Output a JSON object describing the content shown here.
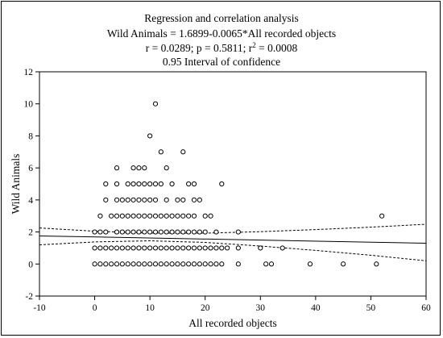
{
  "chart_data": {
    "type": "scatter",
    "title_lines": [
      "Regression and correlation analysis",
      "Wild Animals = 1.6899-0.0065*All recorded objects",
      "r = 0.0289; p = 0.5811; r2 = 0.0008",
      "0.95 Interval of confidence"
    ],
    "stats": {
      "r": "0.0289",
      "p": "0.5811",
      "r2": "0.0008"
    },
    "xlabel": "All recorded objects",
    "ylabel": "Wild Animals",
    "xlim": [
      -10,
      60
    ],
    "ylim": [
      -2,
      12
    ],
    "xticks": [
      -10,
      0,
      10,
      20,
      30,
      40,
      50,
      60
    ],
    "yticks": [
      -2,
      0,
      2,
      4,
      6,
      8,
      10,
      12
    ],
    "grid": false,
    "regression": {
      "intercept": 1.6899,
      "slope": -0.0065
    },
    "confidence_band": {
      "level": 0.95,
      "upper": [
        [
          -10,
          2.25
        ],
        [
          0,
          2.05
        ],
        [
          10,
          1.93
        ],
        [
          20,
          1.93
        ],
        [
          30,
          2.02
        ],
        [
          40,
          2.15
        ],
        [
          50,
          2.3
        ],
        [
          60,
          2.48
        ]
      ],
      "lower": [
        [
          -10,
          1.2
        ],
        [
          0,
          1.38
        ],
        [
          10,
          1.45
        ],
        [
          20,
          1.35
        ],
        [
          30,
          1.12
        ],
        [
          40,
          0.85
        ],
        [
          50,
          0.55
        ],
        [
          60,
          0.2
        ]
      ]
    },
    "points": [
      [
        0,
        0
      ],
      [
        1,
        0
      ],
      [
        2,
        0
      ],
      [
        3,
        0
      ],
      [
        4,
        0
      ],
      [
        5,
        0
      ],
      [
        6,
        0
      ],
      [
        7,
        0
      ],
      [
        8,
        0
      ],
      [
        9,
        0
      ],
      [
        10,
        0
      ],
      [
        11,
        0
      ],
      [
        12,
        0
      ],
      [
        13,
        0
      ],
      [
        14,
        0
      ],
      [
        15,
        0
      ],
      [
        16,
        0
      ],
      [
        17,
        0
      ],
      [
        18,
        0
      ],
      [
        19,
        0
      ],
      [
        20,
        0
      ],
      [
        21,
        0
      ],
      [
        22,
        0
      ],
      [
        23,
        0
      ],
      [
        26,
        0
      ],
      [
        31,
        0
      ],
      [
        32,
        0
      ],
      [
        39,
        0
      ],
      [
        45,
        0
      ],
      [
        51,
        0
      ],
      [
        0,
        1
      ],
      [
        1,
        1
      ],
      [
        2,
        1
      ],
      [
        3,
        1
      ],
      [
        4,
        1
      ],
      [
        5,
        1
      ],
      [
        6,
        1
      ],
      [
        7,
        1
      ],
      [
        8,
        1
      ],
      [
        9,
        1
      ],
      [
        10,
        1
      ],
      [
        11,
        1
      ],
      [
        12,
        1
      ],
      [
        13,
        1
      ],
      [
        14,
        1
      ],
      [
        15,
        1
      ],
      [
        16,
        1
      ],
      [
        17,
        1
      ],
      [
        18,
        1
      ],
      [
        19,
        1
      ],
      [
        20,
        1
      ],
      [
        21,
        1
      ],
      [
        22,
        1
      ],
      [
        23,
        1
      ],
      [
        24,
        1
      ],
      [
        26,
        1
      ],
      [
        30,
        1
      ],
      [
        34,
        1
      ],
      [
        0,
        2
      ],
      [
        1,
        2
      ],
      [
        2,
        2
      ],
      [
        4,
        2
      ],
      [
        5,
        2
      ],
      [
        6,
        2
      ],
      [
        7,
        2
      ],
      [
        8,
        2
      ],
      [
        9,
        2
      ],
      [
        10,
        2
      ],
      [
        11,
        2
      ],
      [
        12,
        2
      ],
      [
        13,
        2
      ],
      [
        14,
        2
      ],
      [
        15,
        2
      ],
      [
        16,
        2
      ],
      [
        17,
        2
      ],
      [
        18,
        2
      ],
      [
        19,
        2
      ],
      [
        20,
        2
      ],
      [
        22,
        2
      ],
      [
        26,
        2
      ],
      [
        1,
        3
      ],
      [
        3,
        3
      ],
      [
        4,
        3
      ],
      [
        5,
        3
      ],
      [
        6,
        3
      ],
      [
        7,
        3
      ],
      [
        8,
        3
      ],
      [
        9,
        3
      ],
      [
        10,
        3
      ],
      [
        11,
        3
      ],
      [
        12,
        3
      ],
      [
        13,
        3
      ],
      [
        14,
        3
      ],
      [
        15,
        3
      ],
      [
        16,
        3
      ],
      [
        17,
        3
      ],
      [
        18,
        3
      ],
      [
        20,
        3
      ],
      [
        21,
        3
      ],
      [
        52,
        3
      ],
      [
        2,
        4
      ],
      [
        4,
        4
      ],
      [
        5,
        4
      ],
      [
        6,
        4
      ],
      [
        7,
        4
      ],
      [
        8,
        4
      ],
      [
        9,
        4
      ],
      [
        10,
        4
      ],
      [
        11,
        4
      ],
      [
        13,
        4
      ],
      [
        15,
        4
      ],
      [
        16,
        4
      ],
      [
        18,
        4
      ],
      [
        19,
        4
      ],
      [
        2,
        5
      ],
      [
        4,
        5
      ],
      [
        6,
        5
      ],
      [
        7,
        5
      ],
      [
        8,
        5
      ],
      [
        9,
        5
      ],
      [
        10,
        5
      ],
      [
        11,
        5
      ],
      [
        12,
        5
      ],
      [
        14,
        5
      ],
      [
        17,
        5
      ],
      [
        18,
        5
      ],
      [
        23,
        5
      ],
      [
        4,
        6
      ],
      [
        7,
        6
      ],
      [
        8,
        6
      ],
      [
        9,
        6
      ],
      [
        13,
        6
      ],
      [
        12,
        7
      ],
      [
        16,
        7
      ],
      [
        10,
        8
      ],
      [
        11,
        10
      ]
    ]
  }
}
